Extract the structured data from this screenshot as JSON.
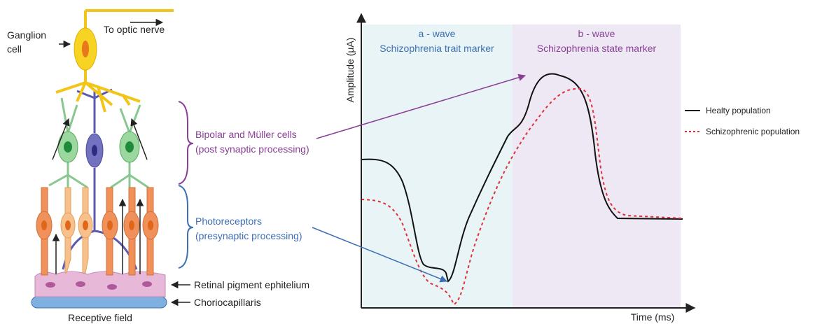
{
  "retina": {
    "ganglion_label": [
      "Ganglion",
      "cell"
    ],
    "optic_nerve_label": "To optic nerve",
    "bipolar_label": [
      "Bipolar and Müller cells",
      "(post synaptic processing)"
    ],
    "photoreceptor_label": [
      "Photoreceptors",
      "(presynaptic processing)"
    ],
    "rpe_label": "Retinal pigment ephitelium",
    "chorio_label": "Choriocapillaris",
    "caption": "Receptive field"
  },
  "erg": {
    "a_wave": [
      "a - wave",
      "Schizophrenia trait marker"
    ],
    "b_wave": [
      "b - wave",
      "Schizophrenia state marker"
    ],
    "y_label": "Amplitude (μA)",
    "x_label": "Time (ms)",
    "legend": [
      "Healty population",
      "Schizophrenic population"
    ]
  }
}
